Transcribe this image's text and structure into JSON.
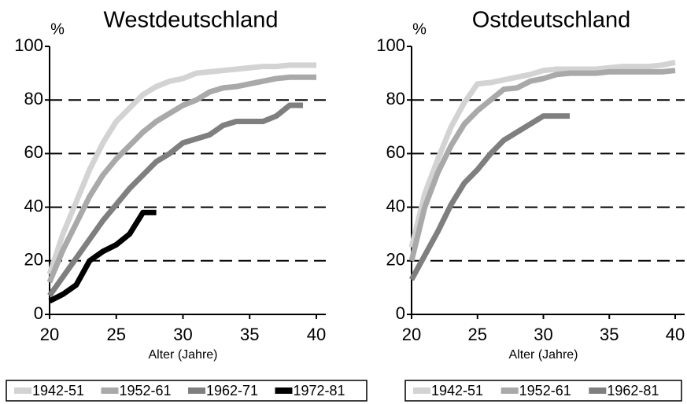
{
  "chart_data": [
    {
      "type": "line",
      "title": "Westdeutschland",
      "y_label": "%",
      "x_label": "Alter (Jahre)",
      "x": [
        20,
        21,
        22,
        23,
        24,
        25,
        26,
        27,
        28,
        29,
        30,
        31,
        32,
        33,
        34,
        35,
        36,
        37,
        38,
        39,
        40
      ],
      "xlim": [
        20,
        40
      ],
      "xticks": [
        20,
        25,
        30,
        35,
        40
      ],
      "ylim": [
        0,
        100
      ],
      "yticks": [
        0,
        20,
        40,
        60,
        80,
        100
      ],
      "grid": true,
      "series": [
        {
          "name": "1942-51",
          "color": "#d3d3d3",
          "values": [
            15,
            30,
            42,
            54,
            64,
            72,
            77,
            82,
            85,
            87,
            88,
            90,
            90.5,
            91,
            91.5,
            92,
            92.5,
            92.5,
            93,
            93,
            93
          ]
        },
        {
          "name": "1952-61",
          "color": "#a9a9a9",
          "values": [
            12,
            24,
            34,
            44,
            52,
            58,
            63,
            68,
            72,
            75,
            78,
            80,
            83,
            84.5,
            85,
            86,
            87,
            88,
            88.5,
            88.5,
            88.5
          ]
        },
        {
          "name": "1962-71",
          "color": "#7f7f7f",
          "values": [
            7,
            14,
            21,
            28,
            35,
            41,
            47,
            52,
            57,
            60,
            64,
            65.5,
            67,
            70.5,
            72,
            72,
            72,
            74,
            78,
            78,
            null
          ]
        },
        {
          "name": "1972-81",
          "color": "#000000",
          "values": [
            5,
            7.5,
            11,
            20,
            23.5,
            26,
            30,
            38,
            38,
            null,
            null,
            null,
            null,
            null,
            null,
            null,
            null,
            null,
            null,
            null,
            null
          ]
        }
      ]
    },
    {
      "type": "line",
      "title": "Ostdeutschland",
      "y_label": "%",
      "x_label": "Alter (Jahre)",
      "x": [
        20,
        21,
        22,
        23,
        24,
        25,
        26,
        27,
        28,
        29,
        30,
        31,
        32,
        33,
        34,
        35,
        36,
        37,
        38,
        39,
        40
      ],
      "xlim": [
        20,
        40
      ],
      "xticks": [
        20,
        25,
        30,
        35,
        40
      ],
      "ylim": [
        0,
        100
      ],
      "yticks": [
        0,
        20,
        40,
        60,
        80,
        100
      ],
      "grid": true,
      "series": [
        {
          "name": "1942-51",
          "color": "#d3d3d3",
          "values": [
            25,
            45,
            58,
            70,
            79,
            86,
            86.5,
            87.5,
            88.5,
            89.5,
            91,
            91.5,
            91.5,
            91.5,
            91.5,
            92,
            92.5,
            92.5,
            92.5,
            93,
            94
          ]
        },
        {
          "name": "1952-61",
          "color": "#a9a9a9",
          "values": [
            20,
            40,
            53,
            63,
            71,
            76,
            80,
            84,
            84.5,
            87,
            88,
            89.5,
            90,
            90,
            90,
            90.5,
            90.5,
            90.5,
            90.5,
            90.5,
            91
          ]
        },
        {
          "name": "1962-81",
          "color": "#7f7f7f",
          "values": [
            13,
            22,
            31,
            41,
            49,
            54,
            60,
            65,
            68,
            71,
            74,
            74,
            74,
            null,
            null,
            null,
            null,
            null,
            null,
            null,
            null
          ]
        }
      ]
    }
  ]
}
